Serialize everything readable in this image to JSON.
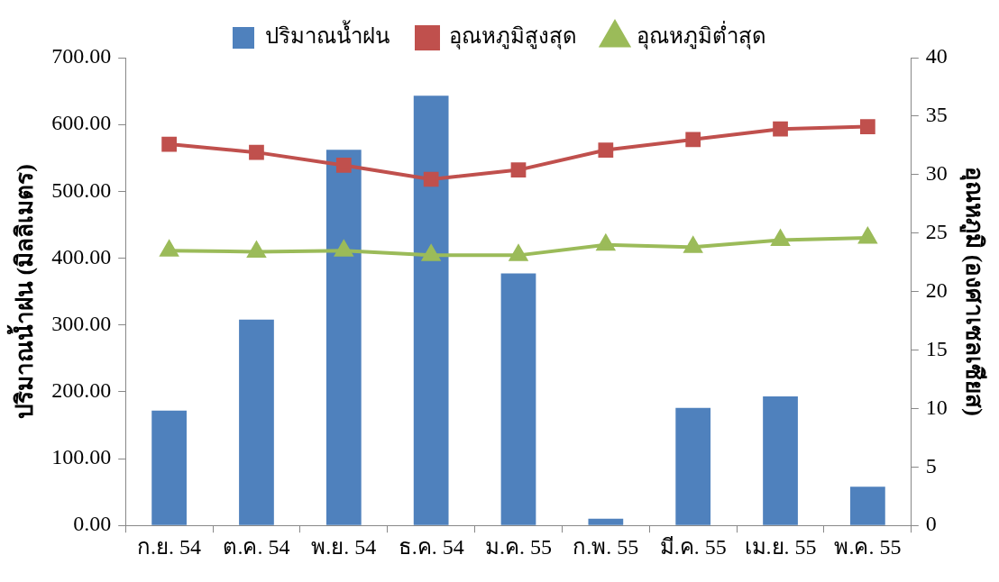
{
  "chart_data": {
    "type": "bar",
    "xlabel": null,
    "ylabel": "ปริมาณน้ำฝน (มิลลิเมตร)",
    "y2label": "อุณหภูมิ (องศาเซลเซียส)",
    "categories": [
      "ก.ย. 54",
      "ต.ค. 54",
      "พ.ย. 54",
      "ธ.ค. 54",
      "ม.ค. 55",
      "ก.พ. 55",
      "มี.ค. 55",
      "เม.ย. 55",
      "พ.ค. 55"
    ],
    "series": [
      {
        "name": "ปริมาณน้ำฝน",
        "color": "#4f81bd",
        "values": [
          172,
          308,
          562,
          643,
          377,
          10,
          176,
          193,
          58
        ]
      },
      {
        "name": "อุณหภูมิสูงสุด",
        "type": "line",
        "axis": "y2",
        "marker": "square",
        "color": "#c0504d",
        "values": [
          32.6,
          31.9,
          30.8,
          29.6,
          30.4,
          32.1,
          33.0,
          33.9,
          34.1
        ]
      },
      {
        "name": "อุณหภูมิต่ำสุด",
        "type": "line",
        "axis": "y2",
        "marker": "triangle",
        "color": "#9bbb59",
        "values": [
          23.5,
          23.4,
          23.5,
          23.1,
          23.1,
          24.0,
          23.8,
          24.4,
          24.6
        ]
      }
    ],
    "ylim": [
      0,
      700
    ],
    "yticks": [
      {
        "value": 0,
        "label": "0.00"
      },
      {
        "value": 100,
        "label": "100.00"
      },
      {
        "value": 200,
        "label": "200.00"
      },
      {
        "value": 300,
        "label": "300.00"
      },
      {
        "value": 400,
        "label": "400.00"
      },
      {
        "value": 500,
        "label": "500.00"
      },
      {
        "value": 600,
        "label": "600.00"
      },
      {
        "value": 700,
        "label": "700.00"
      }
    ],
    "y2lim": [
      0,
      40
    ],
    "y2ticks": [
      0,
      5,
      10,
      15,
      20,
      25,
      30,
      35,
      40
    ],
    "grid": false,
    "legend": "top"
  }
}
